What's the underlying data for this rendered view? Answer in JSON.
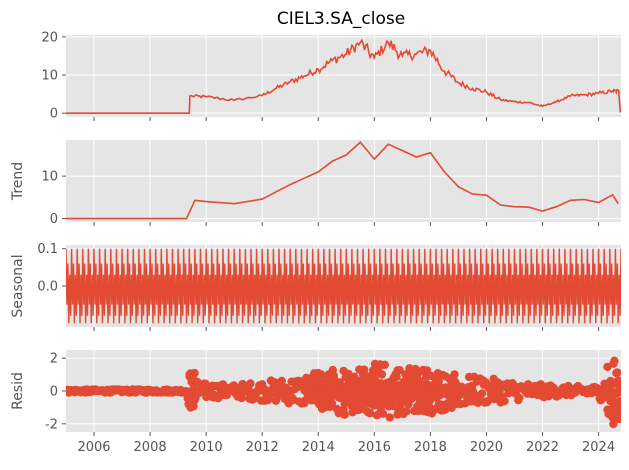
{
  "chart_data": {
    "type": "line",
    "title": "CIEL3.SA_close",
    "accent_color": "#E24A33",
    "x_ticks": [
      "2006",
      "2008",
      "2010",
      "2012",
      "2014",
      "2016",
      "2018",
      "2020",
      "2022",
      "2024"
    ],
    "xlim": [
      2005.0,
      2024.8
    ],
    "grid": true,
    "panels": [
      {
        "name": "observed",
        "ylabel": "",
        "ylim": [
          -1,
          20.5
        ],
        "yticks": [
          "0",
          "10",
          "20"
        ],
        "style": "line",
        "series": [
          {
            "x": 2005.0,
            "y": 0
          },
          {
            "x": 2009.4,
            "y": 0
          },
          {
            "x": 2009.42,
            "y": 4.5
          },
          {
            "x": 2010.0,
            "y": 4.3
          },
          {
            "x": 2011.0,
            "y": 3.4
          },
          {
            "x": 2012.0,
            "y": 4.6
          },
          {
            "x": 2012.5,
            "y": 6.5
          },
          {
            "x": 2013.0,
            "y": 8.2
          },
          {
            "x": 2013.5,
            "y": 9.8
          },
          {
            "x": 2014.0,
            "y": 11.5
          },
          {
            "x": 2014.5,
            "y": 13.8
          },
          {
            "x": 2015.0,
            "y": 15.5
          },
          {
            "x": 2015.5,
            "y": 18.5
          },
          {
            "x": 2016.0,
            "y": 14.5
          },
          {
            "x": 2016.5,
            "y": 18.5
          },
          {
            "x": 2017.0,
            "y": 15.0
          },
          {
            "x": 2017.5,
            "y": 15.5
          },
          {
            "x": 2018.0,
            "y": 16.5
          },
          {
            "x": 2018.5,
            "y": 11.0
          },
          {
            "x": 2019.0,
            "y": 8.0
          },
          {
            "x": 2019.5,
            "y": 6.5
          },
          {
            "x": 2020.0,
            "y": 5.5
          },
          {
            "x": 2020.5,
            "y": 3.5
          },
          {
            "x": 2021.0,
            "y": 3.0
          },
          {
            "x": 2021.5,
            "y": 2.8
          },
          {
            "x": 2022.0,
            "y": 1.8
          },
          {
            "x": 2022.5,
            "y": 3.0
          },
          {
            "x": 2023.0,
            "y": 4.5
          },
          {
            "x": 2023.5,
            "y": 4.8
          },
          {
            "x": 2024.0,
            "y": 5.2
          },
          {
            "x": 2024.5,
            "y": 5.8
          },
          {
            "x": 2024.72,
            "y": 5.8
          },
          {
            "x": 2024.78,
            "y": 0.2
          }
        ]
      },
      {
        "name": "trend",
        "ylabel": "Trend",
        "ylim": [
          -0.8,
          18.5
        ],
        "yticks": [
          "0",
          "10"
        ],
        "style": "line",
        "series": [
          {
            "x": 2005.0,
            "y": 0
          },
          {
            "x": 2009.3,
            "y": 0
          },
          {
            "x": 2009.6,
            "y": 4.3
          },
          {
            "x": 2010.0,
            "y": 4.0
          },
          {
            "x": 2011.0,
            "y": 3.5
          },
          {
            "x": 2012.0,
            "y": 4.6
          },
          {
            "x": 2012.5,
            "y": 6.3
          },
          {
            "x": 2013.0,
            "y": 8.0
          },
          {
            "x": 2013.5,
            "y": 9.5
          },
          {
            "x": 2014.0,
            "y": 11.0
          },
          {
            "x": 2014.5,
            "y": 13.5
          },
          {
            "x": 2015.0,
            "y": 15.0
          },
          {
            "x": 2015.5,
            "y": 18.0
          },
          {
            "x": 2016.0,
            "y": 14.0
          },
          {
            "x": 2016.5,
            "y": 17.5
          },
          {
            "x": 2017.0,
            "y": 16.0
          },
          {
            "x": 2017.5,
            "y": 14.5
          },
          {
            "x": 2018.0,
            "y": 15.5
          },
          {
            "x": 2018.5,
            "y": 11.0
          },
          {
            "x": 2019.0,
            "y": 7.5
          },
          {
            "x": 2019.5,
            "y": 5.8
          },
          {
            "x": 2020.0,
            "y": 5.5
          },
          {
            "x": 2020.5,
            "y": 3.2
          },
          {
            "x": 2021.0,
            "y": 2.8
          },
          {
            "x": 2021.5,
            "y": 2.7
          },
          {
            "x": 2022.0,
            "y": 1.8
          },
          {
            "x": 2022.5,
            "y": 2.8
          },
          {
            "x": 2023.0,
            "y": 4.3
          },
          {
            "x": 2023.5,
            "y": 4.5
          },
          {
            "x": 2024.0,
            "y": 3.8
          },
          {
            "x": 2024.5,
            "y": 5.6
          },
          {
            "x": 2024.7,
            "y": 3.5
          }
        ]
      },
      {
        "name": "seasonal",
        "ylabel": "Seasonal",
        "ylim": [
          -0.11,
          0.11
        ],
        "yticks": [
          "0.1",
          "0.0"
        ],
        "ytick_values": [
          0.1,
          0.0
        ],
        "style": "oscillation",
        "amplitude_max": 0.1,
        "amplitude_min": -0.1,
        "cycles_per_year": 5
      },
      {
        "name": "resid",
        "ylabel": "Resid",
        "ylim": [
          -2.5,
          2.5
        ],
        "yticks": [
          "2",
          "0",
          "-2"
        ],
        "ytick_values": [
          2,
          0,
          -2
        ],
        "style": "scatter",
        "envelope": [
          {
            "x": 2005.0,
            "a": 0.1
          },
          {
            "x": 2009.3,
            "a": 0.1
          },
          {
            "x": 2009.5,
            "a": 2.2
          },
          {
            "x": 2009.7,
            "a": 0.5
          },
          {
            "x": 2011.0,
            "a": 0.4
          },
          {
            "x": 2012.0,
            "a": 0.6
          },
          {
            "x": 2013.0,
            "a": 0.8
          },
          {
            "x": 2014.0,
            "a": 1.2
          },
          {
            "x": 2015.0,
            "a": 1.5
          },
          {
            "x": 2016.0,
            "a": 1.8
          },
          {
            "x": 2017.0,
            "a": 1.5
          },
          {
            "x": 2018.0,
            "a": 1.4
          },
          {
            "x": 2019.0,
            "a": 1.0
          },
          {
            "x": 2020.0,
            "a": 0.8
          },
          {
            "x": 2021.0,
            "a": 0.6
          },
          {
            "x": 2022.0,
            "a": 0.4
          },
          {
            "x": 2023.0,
            "a": 0.3
          },
          {
            "x": 2024.0,
            "a": 0.3
          },
          {
            "x": 2024.5,
            "a": 2.2
          },
          {
            "x": 2024.8,
            "a": 2.2
          }
        ]
      }
    ]
  }
}
